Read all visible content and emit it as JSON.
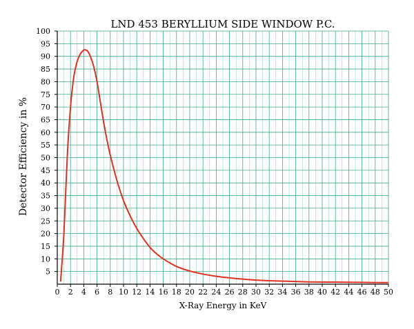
{
  "chart_data": {
    "type": "line",
    "title": "LND 453 BERYLLIUM SIDE WINDOW P.C.",
    "xlabel": "X-Ray Energy in KeV",
    "ylabel": "Detector Efficiency in %",
    "xlim": [
      0,
      50
    ],
    "ylim": [
      0,
      100
    ],
    "x_ticks": [
      0,
      2,
      4,
      6,
      8,
      10,
      12,
      14,
      16,
      18,
      20,
      22,
      24,
      26,
      28,
      30,
      32,
      34,
      36,
      38,
      40,
      42,
      44,
      46,
      48,
      50
    ],
    "y_ticks": [
      5,
      10,
      15,
      20,
      25,
      30,
      35,
      40,
      45,
      50,
      55,
      60,
      65,
      70,
      75,
      80,
      85,
      90,
      95,
      100
    ],
    "grid": true,
    "colors": {
      "grid": "#3aaa8c",
      "series": "#e0301e",
      "axis": "#000000"
    },
    "series": [
      {
        "x": [
          0.5,
          1.0,
          1.5,
          2.0,
          2.5,
          3.0,
          3.5,
          4.0,
          4.3,
          4.6,
          5.0,
          5.5,
          6.0,
          6.5,
          7.0,
          7.5,
          8.0,
          9.0,
          10.0,
          11.0,
          12.0,
          13.0,
          14.0,
          15.0,
          16.0,
          18.0,
          20.0,
          22.0,
          24.0,
          26.0,
          28.0,
          30.0,
          34.0,
          38.0,
          42.0,
          46.0,
          50.0
        ],
        "values": [
          1,
          20,
          50,
          70,
          82,
          88,
          91,
          92.5,
          92.5,
          92,
          90,
          86,
          80,
          72,
          64,
          57,
          51,
          41,
          33,
          27,
          22,
          18,
          14.5,
          12,
          10,
          7,
          5.2,
          4,
          3.1,
          2.5,
          2,
          1.6,
          1.2,
          0.9,
          0.8,
          0.7,
          0.6
        ]
      }
    ]
  }
}
